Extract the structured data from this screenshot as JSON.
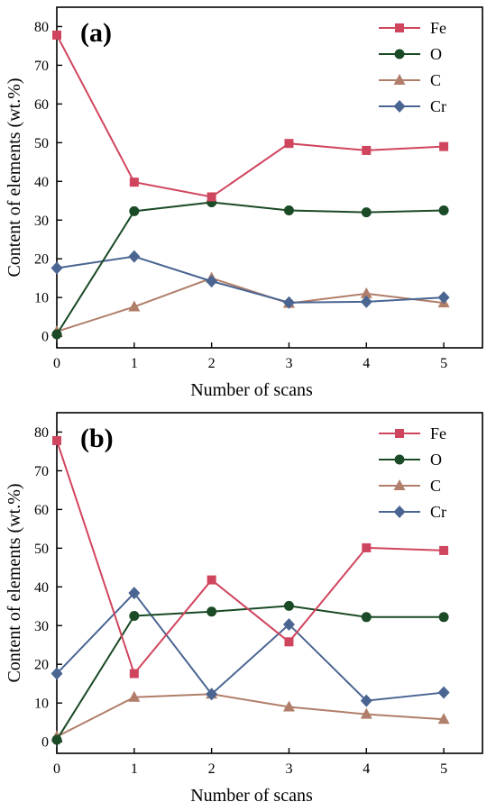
{
  "colors": {
    "Fe": "#d0455e",
    "O": "#1a4a26",
    "C": "#b07e6a",
    "Cr": "#4a6592",
    "axis": "#000000",
    "background": "#ffffff"
  },
  "chart_data": [
    {
      "type": "line",
      "panel_label": "(a)",
      "xlabel": "Number of scans",
      "ylabel": "Content of elements (wt.%)",
      "x": [
        0,
        1,
        2,
        3,
        4,
        5
      ],
      "xlim": [
        0,
        5.5
      ],
      "ylim": [
        -3,
        85
      ],
      "xticks": [
        0,
        1,
        2,
        3,
        4,
        5
      ],
      "yticks": [
        0,
        10,
        20,
        30,
        40,
        50,
        60,
        70,
        80
      ],
      "grid": false,
      "legend": "top-right",
      "series": [
        {
          "name": "Fe",
          "marker": "square",
          "values": [
            77.8,
            39.8,
            36.0,
            49.8,
            48.0,
            49.0
          ]
        },
        {
          "name": "O",
          "marker": "circle",
          "values": [
            0.5,
            32.3,
            34.6,
            32.5,
            32.0,
            32.5
          ]
        },
        {
          "name": "C",
          "marker": "triangle",
          "values": [
            1.2,
            7.6,
            15.0,
            8.5,
            11.0,
            8.6
          ]
        },
        {
          "name": "Cr",
          "marker": "diamond",
          "values": [
            17.6,
            20.6,
            14.2,
            8.7,
            8.9,
            10.0
          ]
        }
      ]
    },
    {
      "type": "line",
      "panel_label": "(b)",
      "xlabel": "Number of scans",
      "ylabel": "Content of elements (wt.%)",
      "x": [
        0,
        1,
        2,
        3,
        4,
        5
      ],
      "xlim": [
        0,
        5.5
      ],
      "ylim": [
        -3,
        85
      ],
      "xticks": [
        0,
        1,
        2,
        3,
        4,
        5
      ],
      "yticks": [
        0,
        10,
        20,
        30,
        40,
        50,
        60,
        70,
        80
      ],
      "grid": false,
      "legend": "top-right",
      "series": [
        {
          "name": "Fe",
          "marker": "square",
          "values": [
            77.8,
            17.6,
            41.8,
            25.8,
            50.1,
            49.4
          ]
        },
        {
          "name": "O",
          "marker": "circle",
          "values": [
            0.5,
            32.5,
            33.6,
            35.1,
            32.2,
            32.2
          ]
        },
        {
          "name": "C",
          "marker": "triangle",
          "values": [
            1.3,
            11.5,
            12.3,
            9.0,
            7.1,
            5.8
          ]
        },
        {
          "name": "Cr",
          "marker": "diamond",
          "values": [
            17.6,
            38.4,
            12.3,
            30.3,
            10.6,
            12.7
          ]
        }
      ]
    }
  ]
}
